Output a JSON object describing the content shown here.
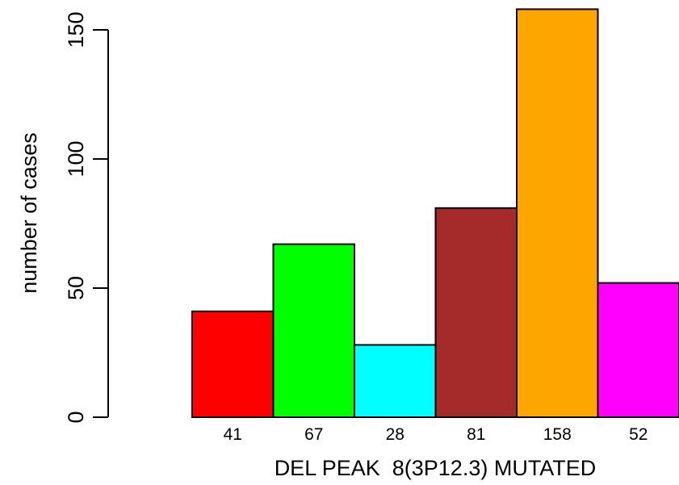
{
  "chart_data": {
    "type": "bar",
    "categories": [
      "41",
      "67",
      "28",
      "81",
      "158",
      "52"
    ],
    "values": [
      41,
      67,
      28,
      81,
      158,
      52
    ],
    "colors": [
      "#ff0000",
      "#00ff00",
      "#00ffff",
      "#a52a2a",
      "#ffa500",
      "#ff00ff"
    ],
    "xlabel": "DEL PEAK  8(3P12.3) MUTATED",
    "ylabel": "number of cases",
    "ylim": [
      0,
      158
    ],
    "yticks": [
      0,
      50,
      100,
      150
    ],
    "grid": false,
    "legend": "none"
  }
}
